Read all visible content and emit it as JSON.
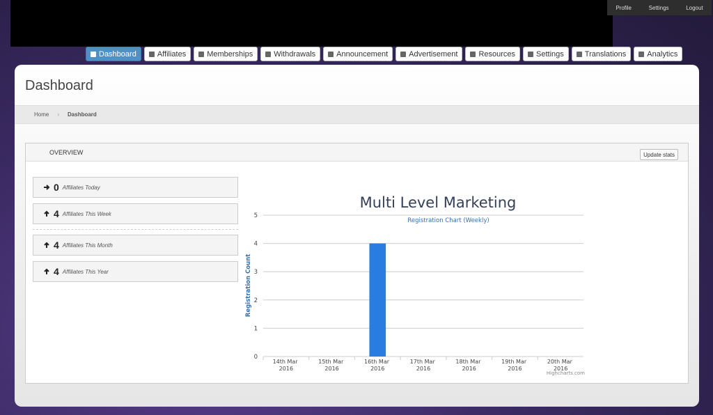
{
  "top_links": [
    "Profile",
    "Settings",
    "Logout"
  ],
  "nav": [
    "Dashboard",
    "Affiliates",
    "Memberships",
    "Withdrawals",
    "Announcement",
    "Advertisement",
    "Resources",
    "Settings",
    "Translations",
    "Analytics"
  ],
  "header": {
    "title": "Dashboard"
  },
  "breadcrumb": [
    "Home",
    "Dashboard"
  ],
  "panel": {
    "title": "OVERVIEW",
    "button": "Update stats"
  },
  "stats": [
    {
      "value": "0",
      "label": "Affiliates Today"
    },
    {
      "value": "4",
      "label": "Affiliates This Week"
    },
    {
      "value": "4",
      "label": "Affiliates This Month"
    },
    {
      "value": "4",
      "label": "Affiliates This Year"
    }
  ],
  "chart_data": {
    "type": "bar",
    "title": "Multi Level Marketing",
    "subtitle": "Registration Chart (Weekly)",
    "y_label": "Registration Count",
    "credits": "Highcharts.com",
    "categories": [
      "14th Mar 2016",
      "15th Mar 2016",
      "16th Mar 2016",
      "17th Mar 2016",
      "18th Mar 2016",
      "19th Mar 2016",
      "20th Mar 2016"
    ],
    "values": [
      0,
      0,
      4,
      0,
      0,
      0,
      0
    ],
    "color": "#2a7de0",
    "ylim": [
      0,
      5
    ],
    "yticks": [
      0,
      1,
      2,
      3,
      4,
      5
    ],
    "grid": true
  }
}
